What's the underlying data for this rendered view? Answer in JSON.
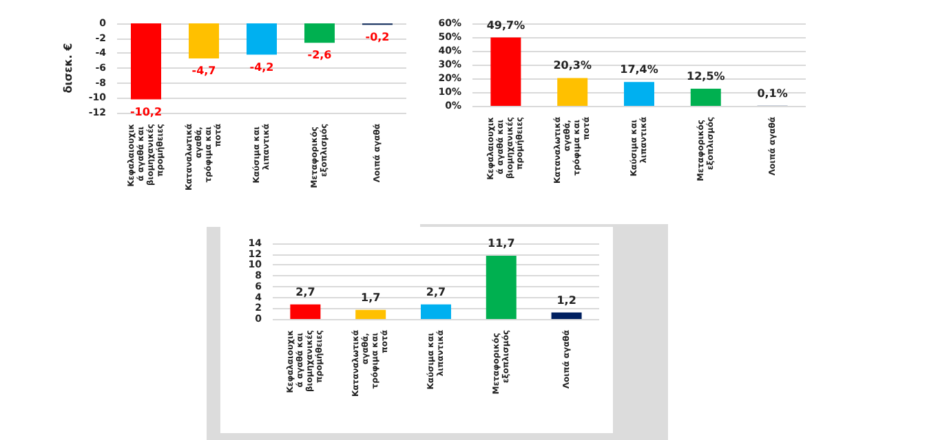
{
  "chart_data": [
    {
      "type": "bar",
      "ylabel": "δισεκ. €",
      "categories": [
        "Κεφαλαιουχικά αγαθά και βιομηχανικές προμήθειες",
        "Καταναλωτικά αγαθά, τρόφιμα και ποτά",
        "Καύσιμα και λιπαντικά",
        "Μεταφορικός εξοπλισμός",
        "Λοιπά αγαθά"
      ],
      "values": [
        -10.2,
        -4.7,
        -4.2,
        -2.6,
        -0.2
      ],
      "colors": [
        "#ff0000",
        "#ffc000",
        "#00b0f0",
        "#00b050",
        "#1f3864"
      ],
      "value_labels": [
        "-10,2",
        "-4,7",
        "-4,2",
        "-2,6",
        "-0,2"
      ],
      "ylim": [
        -12,
        0
      ],
      "yticks": [
        -12,
        -10,
        -8,
        -6,
        -4,
        -2,
        0
      ],
      "grid": "y"
    },
    {
      "type": "bar",
      "categories": [
        "Κεφαλαιουχικά αγαθά και βιομηχανικές προμήθειες",
        "Καταναλωτικά αγαθά, τρόφιμα και ποτά",
        "Καύσιμα και λιπαντικά",
        "Μεταφορικός εξοπλισμός",
        "Λοιπά αγαθά"
      ],
      "values": [
        49.7,
        20.3,
        17.4,
        12.5,
        0.1
      ],
      "colors": [
        "#ff0000",
        "#ffc000",
        "#00b0f0",
        "#00b050",
        "#1f3864"
      ],
      "value_labels": [
        "49,7%",
        "20,3%",
        "17,4%",
        "12,5%",
        "0,1%"
      ],
      "ylim": [
        0,
        60
      ],
      "yticks": [
        {
          "value": 0,
          "label": "0%"
        },
        {
          "value": 10,
          "label": "10%"
        },
        {
          "value": 20,
          "label": "20%"
        },
        {
          "value": 30,
          "label": "30%"
        },
        {
          "value": 40,
          "label": "40%"
        },
        {
          "value": 50,
          "label": "50%"
        },
        {
          "value": 60,
          "label": "60%"
        }
      ],
      "grid": "y"
    },
    {
      "type": "bar",
      "categories": [
        "Κεφαλαιουχικά αγαθά και βιομηχανικές προμήθειες",
        "Καταναλωτικά αγαθά, τρόφιμα και ποτά",
        "Καύσιμα και λιπαντικά",
        "Μεταφορικός εξοπλισμός",
        "Λοιπά αγαθά"
      ],
      "values": [
        2.7,
        1.7,
        2.7,
        11.7,
        1.2
      ],
      "colors": [
        "#ff0000",
        "#ffc000",
        "#00b0f0",
        "#00b050",
        "#002060"
      ],
      "value_labels": [
        "2,7",
        "1,7",
        "2,7",
        "11,7",
        "1,2"
      ],
      "ylim": [
        0,
        14
      ],
      "yticks": [
        0,
        2,
        4,
        6,
        8,
        10,
        12,
        14
      ],
      "grid": "y"
    }
  ]
}
